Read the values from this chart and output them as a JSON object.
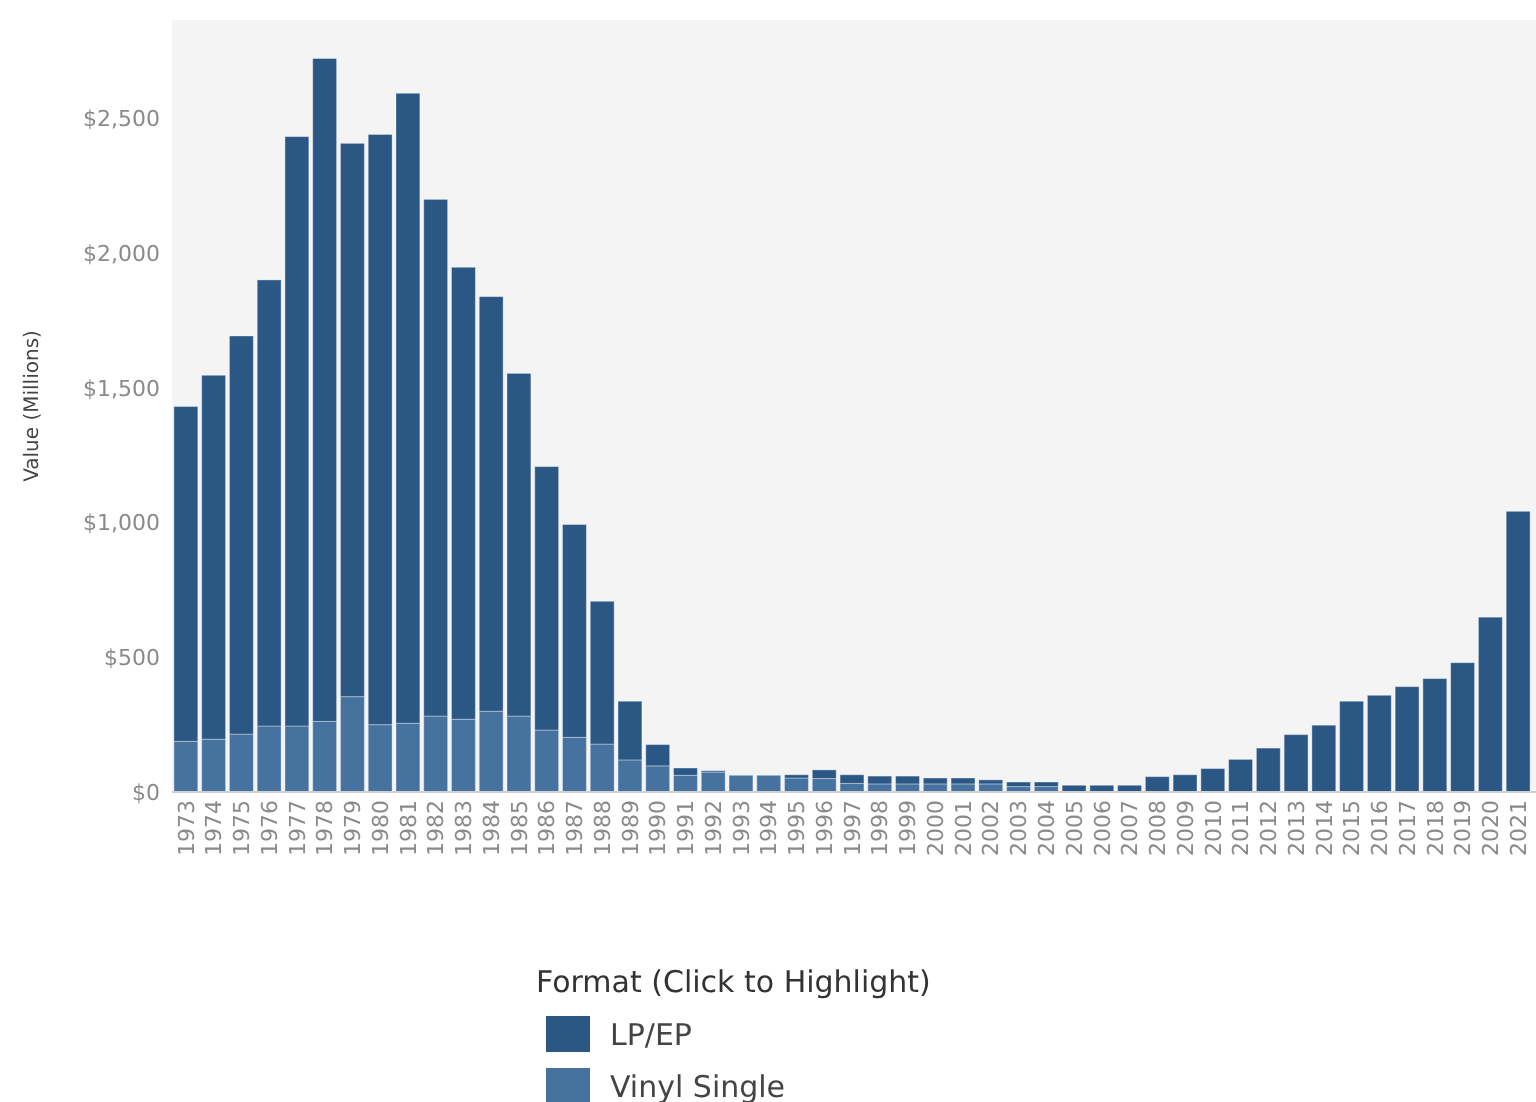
{
  "chart_data": {
    "type": "bar",
    "stacked": true,
    "ylabel": "Value (Millions)",
    "legend_title": "Format (Click to Highlight)",
    "legend": "bottom",
    "categories": [
      "1973",
      "1974",
      "1975",
      "1976",
      "1977",
      "1978",
      "1979",
      "1980",
      "1981",
      "1982",
      "1983",
      "1984",
      "1985",
      "1986",
      "1987",
      "1988",
      "1989",
      "1990",
      "1991",
      "1992",
      "1993",
      "1994",
      "1995",
      "1996",
      "1997",
      "1998",
      "1999",
      "2000",
      "2001",
      "2002",
      "2003",
      "2004",
      "2005",
      "2006",
      "2007",
      "2008",
      "2009",
      "2010",
      "2011",
      "2012",
      "2013",
      "2014",
      "2015",
      "2016",
      "2017",
      "2018",
      "2019",
      "2020",
      "2021"
    ],
    "series": [
      {
        "name": "Vinyl Single",
        "color": "#46729f",
        "values": [
          188,
          196,
          215,
          245,
          245,
          262,
          354,
          250,
          255,
          282,
          270,
          300,
          282,
          230,
          203,
          178,
          119,
          97,
          62,
          74,
          62,
          62,
          52,
          50,
          32,
          30,
          30,
          30,
          30,
          30,
          20,
          20,
          null,
          null,
          null,
          null,
          null,
          null,
          null,
          null,
          null,
          null,
          null,
          null,
          null,
          null,
          null,
          null,
          null
        ]
      },
      {
        "name": "LP/EP",
        "color": "#2b5785",
        "values": [
          1243,
          1351,
          1478,
          1656,
          2188,
          2461,
          2054,
          2191,
          2339,
          1918,
          1678,
          1539,
          1272,
          978,
          790,
          530,
          218,
          79,
          27,
          5,
          0,
          0,
          12,
          32,
          32,
          29,
          29,
          22,
          22,
          15,
          17,
          17,
          25,
          25,
          25,
          57,
          64,
          87,
          121,
          163,
          213,
          248,
          337,
          359,
          391,
          421,
          480,
          649,
          1042
        ]
      }
    ],
    "ylim": [
      0,
      2866
    ],
    "yticks": [
      {
        "value": 0,
        "label": "$0"
      },
      {
        "value": 500,
        "label": "$500"
      },
      {
        "value": 1000,
        "label": "$1,000"
      },
      {
        "value": 1500,
        "label": "$1,500"
      },
      {
        "value": 2000,
        "label": "$2,000"
      },
      {
        "value": 2500,
        "label": "$2,500"
      }
    ]
  }
}
